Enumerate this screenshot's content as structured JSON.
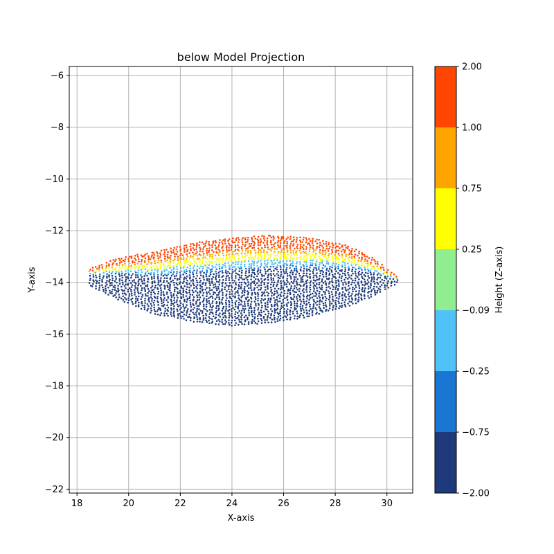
{
  "chart_data": {
    "type": "scatter",
    "title": "below Model Projection",
    "xlabel": "X-axis",
    "ylabel": "Y-axis",
    "xlim": [
      17.7,
      31.0
    ],
    "ylim": [
      -22.15,
      -5.65
    ],
    "xticks": [
      18,
      20,
      22,
      24,
      26,
      28,
      30
    ],
    "yticks": [
      -22,
      -20,
      -18,
      -16,
      -14,
      -12,
      -10,
      -8,
      -6
    ],
    "grid": true,
    "point_color_by": "height",
    "shape": {
      "x_range": [
        18.5,
        30.4
      ],
      "center_y": -13.9,
      "top_edge": [
        [
          18.5,
          -13.5
        ],
        [
          19.5,
          -13.1
        ],
        [
          21,
          -12.85
        ],
        [
          22.5,
          -12.5
        ],
        [
          24,
          -12.3
        ],
        [
          25.5,
          -12.2
        ],
        [
          27,
          -12.3
        ],
        [
          28.5,
          -12.6
        ],
        [
          29.5,
          -13.1
        ],
        [
          30.4,
          -13.8
        ]
      ],
      "bottom_edge": [
        [
          18.5,
          -14.1
        ],
        [
          19.5,
          -14.6
        ],
        [
          21,
          -15.2
        ],
        [
          22.5,
          -15.5
        ],
        [
          24,
          -15.65
        ],
        [
          25.5,
          -15.55
        ],
        [
          27,
          -15.3
        ],
        [
          28.5,
          -14.9
        ],
        [
          29.5,
          -14.5
        ],
        [
          30.4,
          -14.0
        ]
      ]
    },
    "colorbar": {
      "label": "Height (Z-axis)",
      "boundaries": [
        -2.0,
        -0.75,
        -0.25,
        -0.09,
        0.25,
        0.75,
        1.0,
        2.0
      ],
      "tick_labels": [
        "-2.00",
        "-0.75",
        "-0.25",
        "-0.09",
        "0.25",
        "0.75",
        "1.00",
        "2.00"
      ],
      "colors": [
        "#1f3a7a",
        "#1976d2",
        "#4fc3f7",
        "#90ee90",
        "#ffff00",
        "#ffa500",
        "#ff4500"
      ]
    }
  }
}
